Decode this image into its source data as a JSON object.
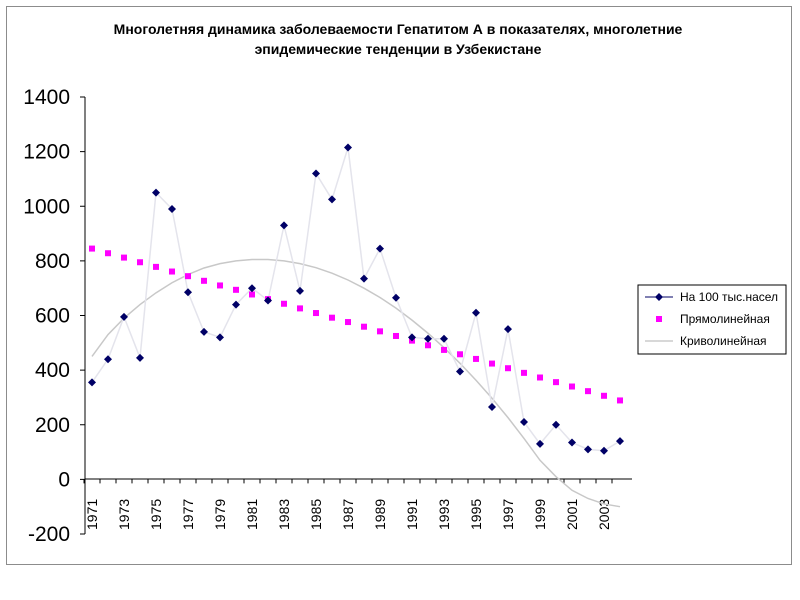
{
  "chart_data": {
    "type": "line",
    "title": "Многолетняя динамика заболеваемости Гепатитом А в показателях, многолетние",
    "subtitle": "эпидемические тенденции в Узбекистане",
    "xlabel": "",
    "ylabel": "",
    "ylim": [
      -200,
      1400
    ],
    "yticks": [
      "-200",
      "0",
      "200",
      "400",
      "600",
      "800",
      "1000",
      "1200",
      "1400"
    ],
    "x": [
      1971,
      1972,
      1973,
      1974,
      1975,
      1976,
      1977,
      1978,
      1979,
      1980,
      1981,
      1982,
      1983,
      1984,
      1985,
      1986,
      1987,
      1988,
      1989,
      1990,
      1991,
      1992,
      1993,
      1994,
      1995,
      1996,
      1997,
      1998,
      1999,
      2000,
      2001,
      2002,
      2003,
      2004
    ],
    "xticks": [
      "1971",
      "1973",
      "1975",
      "1977",
      "1979",
      "1981",
      "1983",
      "1985",
      "1987",
      "1989",
      "1991",
      "1993",
      "1995",
      "1997",
      "1999",
      "2001",
      "2003"
    ],
    "grid": false,
    "legend_position": "right",
    "series": [
      {
        "name": "На 100 тыс.насел",
        "color": "#000066",
        "marker": "diamond",
        "values": [
          355,
          440,
          595,
          445,
          1050,
          990,
          685,
          540,
          520,
          640,
          700,
          655,
          930,
          690,
          1120,
          1025,
          1215,
          735,
          845,
          665,
          520,
          515,
          515,
          395,
          610,
          265,
          550,
          210,
          130,
          200,
          135,
          110,
          105,
          140
        ]
      },
      {
        "name": "Прямолинейная",
        "color": "#ff00ff",
        "marker": "square",
        "values": [
          845,
          828,
          812,
          795,
          778,
          761,
          744,
          727,
          710,
          694,
          677,
          660,
          643,
          626,
          609,
          592,
          576,
          559,
          542,
          525,
          508,
          491,
          474,
          458,
          441,
          424,
          407,
          390,
          373,
          356,
          340,
          323,
          306,
          289
        ]
      },
      {
        "name": "Криволинейная",
        "color": "#c8c8c8",
        "marker": "none",
        "values": [
          450,
          530,
          590,
          640,
          683,
          720,
          750,
          774,
          790,
          800,
          805,
          805,
          800,
          790,
          775,
          755,
          730,
          700,
          666,
          627,
          583,
          535,
          482,
          425,
          363,
          297,
          226,
          150,
          70,
          10,
          -40,
          -70,
          -90,
          -100
        ]
      }
    ]
  }
}
